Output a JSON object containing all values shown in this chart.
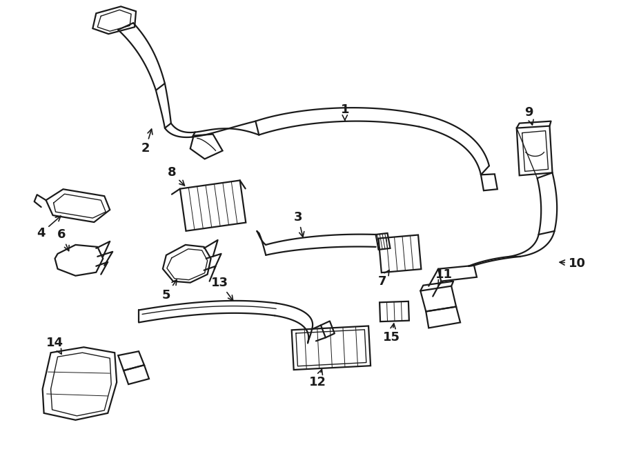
{
  "bg_color": "#ffffff",
  "line_color": "#1a1a1a",
  "fig_width": 9.0,
  "fig_height": 6.61,
  "dpi": 100,
  "font_size": 13
}
